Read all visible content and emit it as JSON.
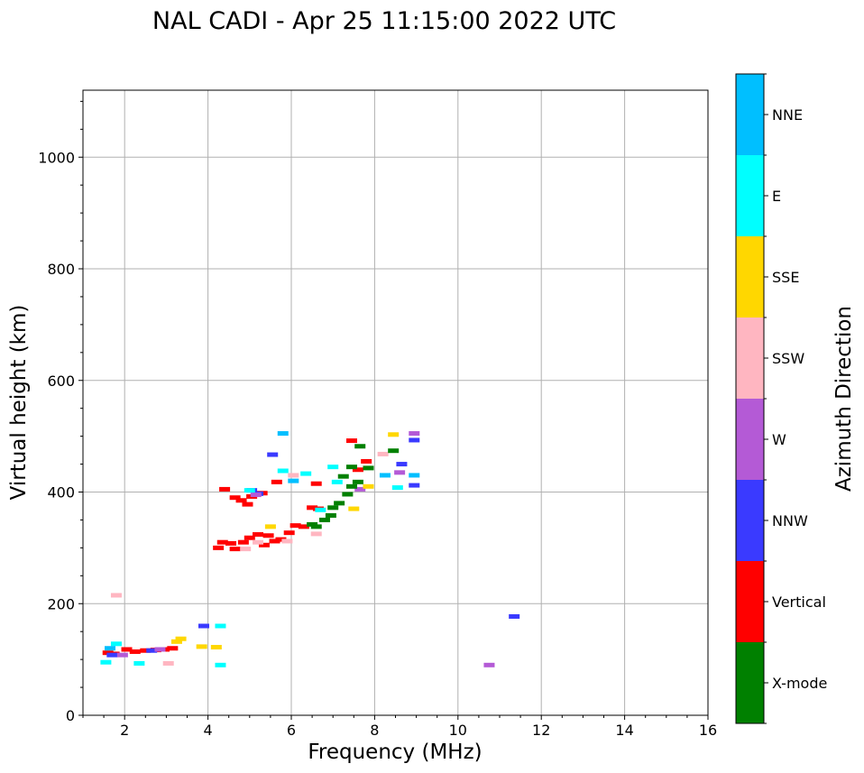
{
  "chart_data": {
    "type": "scatter",
    "title": "NAL CADI - Apr 25 11:15:00 2022 UTC",
    "xlabel": "Frequency (MHz)",
    "ylabel": "Virtual height (km)",
    "xlim": [
      1,
      16
    ],
    "ylim": [
      0,
      1120
    ],
    "xticks": [
      2,
      4,
      6,
      8,
      10,
      12,
      14,
      16
    ],
    "yticks": [
      0,
      200,
      400,
      600,
      800,
      1000
    ],
    "grid": true,
    "colorbar": {
      "label": "Azimuth Direction",
      "categories": [
        "X-mode",
        "Vertical",
        "NNW",
        "W",
        "SSW",
        "SSE",
        "E",
        "NNE"
      ],
      "colors": {
        "X-mode": "#008000",
        "Vertical": "#ff0000",
        "NNW": "#3a3aff",
        "W": "#b45ad6",
        "SSW": "#ffb6c1",
        "SSE": "#ffd700",
        "E": "#00ffff",
        "NNE": "#00bfff"
      }
    },
    "series": [
      {
        "name": "Vertical",
        "points": [
          [
            1.6,
            112
          ],
          [
            1.75,
            110
          ],
          [
            2.05,
            118
          ],
          [
            2.25,
            114
          ],
          [
            2.5,
            116
          ],
          [
            2.75,
            117
          ],
          [
            2.95,
            118
          ],
          [
            3.15,
            120
          ],
          [
            4.25,
            300
          ],
          [
            4.35,
            310
          ],
          [
            4.55,
            308
          ],
          [
            4.65,
            298
          ],
          [
            4.85,
            310
          ],
          [
            5.0,
            318
          ],
          [
            5.2,
            324
          ],
          [
            5.35,
            305
          ],
          [
            5.45,
            322
          ],
          [
            5.6,
            312
          ],
          [
            5.75,
            315
          ],
          [
            5.95,
            327
          ],
          [
            6.1,
            340
          ],
          [
            6.3,
            338
          ],
          [
            6.5,
            372
          ],
          [
            6.65,
            370
          ],
          [
            4.4,
            405
          ],
          [
            4.65,
            390
          ],
          [
            4.8,
            385
          ],
          [
            4.95,
            378
          ],
          [
            5.05,
            392
          ],
          [
            5.3,
            398
          ],
          [
            5.65,
            418
          ],
          [
            6.6,
            415
          ],
          [
            7.45,
            492
          ],
          [
            7.6,
            440
          ],
          [
            7.8,
            455
          ]
        ]
      },
      {
        "name": "NNW",
        "points": [
          [
            1.7,
            108
          ],
          [
            2.65,
            116
          ],
          [
            3.9,
            160
          ],
          [
            5.05,
            403
          ],
          [
            5.2,
            397
          ],
          [
            5.55,
            467
          ],
          [
            8.65,
            450
          ],
          [
            8.95,
            412
          ],
          [
            8.95,
            493
          ],
          [
            11.35,
            177
          ]
        ]
      },
      {
        "name": "W",
        "points": [
          [
            1.95,
            108
          ],
          [
            2.85,
            118
          ],
          [
            5.15,
            395
          ],
          [
            7.65,
            405
          ],
          [
            8.6,
            435
          ],
          [
            8.95,
            505
          ],
          [
            10.75,
            90
          ]
        ]
      },
      {
        "name": "SSW",
        "points": [
          [
            1.8,
            215
          ],
          [
            3.05,
            93
          ],
          [
            4.9,
            298
          ],
          [
            5.2,
            310
          ],
          [
            5.9,
            312
          ],
          [
            6.05,
            430
          ],
          [
            6.6,
            325
          ],
          [
            8.2,
            468
          ]
        ]
      },
      {
        "name": "SSE",
        "points": [
          [
            3.25,
            132
          ],
          [
            3.35,
            137
          ],
          [
            3.85,
            123
          ],
          [
            4.2,
            122
          ],
          [
            5.5,
            338
          ],
          [
            7.5,
            370
          ],
          [
            7.85,
            410
          ],
          [
            8.45,
            503
          ]
        ]
      },
      {
        "name": "E",
        "points": [
          [
            1.55,
            95
          ],
          [
            1.8,
            128
          ],
          [
            2.35,
            93
          ],
          [
            4.3,
            160
          ],
          [
            4.3,
            90
          ],
          [
            5.0,
            403
          ],
          [
            5.8,
            438
          ],
          [
            6.35,
            433
          ],
          [
            6.7,
            368
          ],
          [
            7.0,
            445
          ],
          [
            7.1,
            418
          ],
          [
            8.55,
            408
          ]
        ]
      },
      {
        "name": "NNE",
        "points": [
          [
            1.65,
            120
          ],
          [
            5.8,
            505
          ],
          [
            6.05,
            420
          ],
          [
            8.95,
            430
          ],
          [
            8.25,
            430
          ]
        ]
      },
      {
        "name": "X-mode",
        "points": [
          [
            6.5,
            342
          ],
          [
            6.6,
            338
          ],
          [
            6.8,
            350
          ],
          [
            6.95,
            358
          ],
          [
            7.0,
            372
          ],
          [
            7.15,
            380
          ],
          [
            7.35,
            396
          ],
          [
            7.45,
            410
          ],
          [
            7.6,
            418
          ],
          [
            7.65,
            482
          ],
          [
            7.85,
            443
          ],
          [
            8.45,
            474
          ],
          [
            7.45,
            445
          ],
          [
            7.25,
            428
          ]
        ]
      }
    ]
  }
}
